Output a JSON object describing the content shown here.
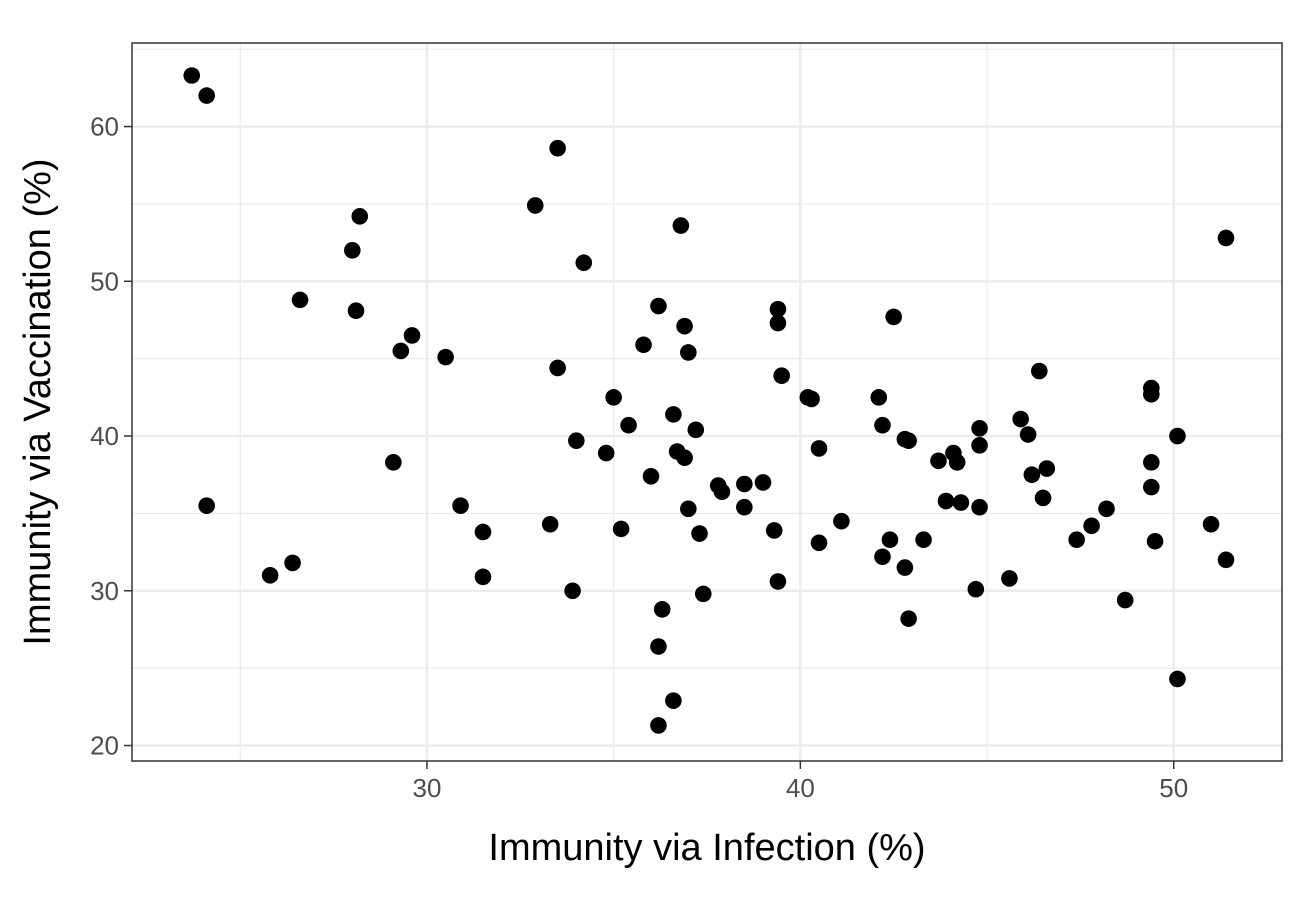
{
  "chart_data": {
    "type": "scatter",
    "title": "",
    "xlabel": "Immunity via Infection (%)",
    "ylabel": "Immunity via Vaccination (%)",
    "xlim": [
      22.1,
      52.9
    ],
    "ylim": [
      19.0,
      65.4
    ],
    "xticks": [
      30,
      40,
      50
    ],
    "yticks": [
      20,
      30,
      40,
      50,
      60
    ],
    "x_tick_labels": [
      "30",
      "40",
      "50"
    ],
    "y_tick_labels": [
      "20",
      "30",
      "40",
      "50",
      "60"
    ],
    "grid": true,
    "legend": "none",
    "colors": {
      "points": "#000000",
      "grid": "#ebebeb",
      "panel_border": "#333333",
      "tick_text": "#4d4d4d"
    },
    "points": [
      [
        23.7,
        63.3
      ],
      [
        24.1,
        62.0
      ],
      [
        24.1,
        35.5
      ],
      [
        25.8,
        31.0
      ],
      [
        26.4,
        31.8
      ],
      [
        26.6,
        48.8
      ],
      [
        28.0,
        52.0
      ],
      [
        28.1,
        48.1
      ],
      [
        28.2,
        54.2
      ],
      [
        29.1,
        38.3
      ],
      [
        29.3,
        45.5
      ],
      [
        29.6,
        46.5
      ],
      [
        30.5,
        45.1
      ],
      [
        30.9,
        35.5
      ],
      [
        31.5,
        33.8
      ],
      [
        31.5,
        30.9
      ],
      [
        32.9,
        54.9
      ],
      [
        33.3,
        34.3
      ],
      [
        33.5,
        58.6
      ],
      [
        33.5,
        44.4
      ],
      [
        33.9,
        30.0
      ],
      [
        34.0,
        39.7
      ],
      [
        34.2,
        51.2
      ],
      [
        34.8,
        38.9
      ],
      [
        35.0,
        42.5
      ],
      [
        35.2,
        34.0
      ],
      [
        35.4,
        40.7
      ],
      [
        35.8,
        45.9
      ],
      [
        36.0,
        37.4
      ],
      [
        36.2,
        48.4
      ],
      [
        36.2,
        21.3
      ],
      [
        36.2,
        26.4
      ],
      [
        36.3,
        28.8
      ],
      [
        36.6,
        22.9
      ],
      [
        36.6,
        41.4
      ],
      [
        36.7,
        39.0
      ],
      [
        36.8,
        53.6
      ],
      [
        36.9,
        38.6
      ],
      [
        36.9,
        47.1
      ],
      [
        37.0,
        45.4
      ],
      [
        37.0,
        35.3
      ],
      [
        37.2,
        40.4
      ],
      [
        37.3,
        33.7
      ],
      [
        37.4,
        29.8
      ],
      [
        37.8,
        36.8
      ],
      [
        37.9,
        36.4
      ],
      [
        38.5,
        35.4
      ],
      [
        38.5,
        36.9
      ],
      [
        39.0,
        37.0
      ],
      [
        39.3,
        33.9
      ],
      [
        39.4,
        48.2
      ],
      [
        39.4,
        47.3
      ],
      [
        39.4,
        30.6
      ],
      [
        39.5,
        43.9
      ],
      [
        40.2,
        42.5
      ],
      [
        40.3,
        42.4
      ],
      [
        40.5,
        39.2
      ],
      [
        40.5,
        33.1
      ],
      [
        41.1,
        34.5
      ],
      [
        42.1,
        42.5
      ],
      [
        42.2,
        40.7
      ],
      [
        42.2,
        32.2
      ],
      [
        42.4,
        33.3
      ],
      [
        42.5,
        47.7
      ],
      [
        42.8,
        39.8
      ],
      [
        42.8,
        31.5
      ],
      [
        42.9,
        28.2
      ],
      [
        42.9,
        39.7
      ],
      [
        43.3,
        33.3
      ],
      [
        43.7,
        38.4
      ],
      [
        43.9,
        35.8
      ],
      [
        44.1,
        38.9
      ],
      [
        44.2,
        38.3
      ],
      [
        44.3,
        35.7
      ],
      [
        44.7,
        30.1
      ],
      [
        44.8,
        40.5
      ],
      [
        44.8,
        35.4
      ],
      [
        44.8,
        39.4
      ],
      [
        45.6,
        30.8
      ],
      [
        45.9,
        41.1
      ],
      [
        46.1,
        40.1
      ],
      [
        46.2,
        37.5
      ],
      [
        46.4,
        44.2
      ],
      [
        46.5,
        36.0
      ],
      [
        46.6,
        37.9
      ],
      [
        47.4,
        33.3
      ],
      [
        47.8,
        34.2
      ],
      [
        48.2,
        35.3
      ],
      [
        48.7,
        29.4
      ],
      [
        49.4,
        43.1
      ],
      [
        49.4,
        42.7
      ],
      [
        49.4,
        38.3
      ],
      [
        49.4,
        36.7
      ],
      [
        49.5,
        33.2
      ],
      [
        50.1,
        40.0
      ],
      [
        50.1,
        24.3
      ],
      [
        51.0,
        34.3
      ],
      [
        51.4,
        52.8
      ],
      [
        51.4,
        32.0
      ]
    ]
  }
}
